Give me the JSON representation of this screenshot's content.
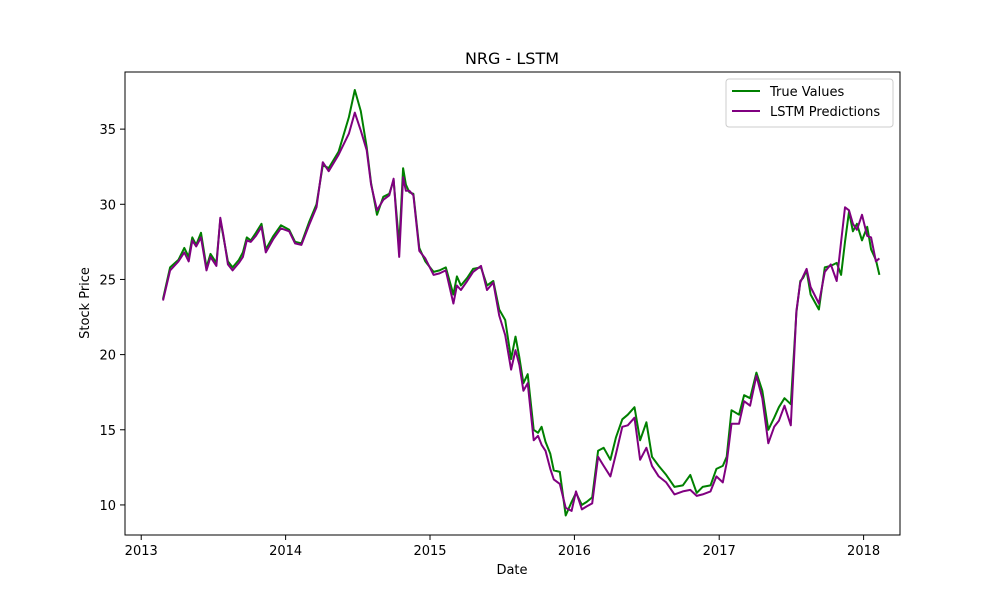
{
  "chart_data": {
    "type": "line",
    "title": "NRG - LSTM",
    "xlabel": "Date",
    "ylabel": "Stock Price",
    "xlim": [
      "2012-11-21",
      "2018-04-03"
    ],
    "ylim": [
      8.0,
      38.8
    ],
    "xticks": [
      {
        "value": "2013-01-01",
        "label": "2013"
      },
      {
        "value": "2014-01-01",
        "label": "2014"
      },
      {
        "value": "2015-01-01",
        "label": "2015"
      },
      {
        "value": "2016-01-01",
        "label": "2016"
      },
      {
        "value": "2017-01-01",
        "label": "2017"
      },
      {
        "value": "2018-01-01",
        "label": "2018"
      }
    ],
    "yticks": [
      10,
      15,
      20,
      25,
      30,
      35
    ],
    "grid": false,
    "legend": "top-right",
    "series": [
      {
        "name": "True Values",
        "color": "#008000",
        "x": [
          "2013-02-25",
          "2013-03-15",
          "2013-04-05",
          "2013-04-20",
          "2013-05-01",
          "2013-05-10",
          "2013-05-20",
          "2013-06-01",
          "2013-06-15",
          "2013-06-25",
          "2013-07-10",
          "2013-07-20",
          "2013-07-28",
          "2013-08-08",
          "2013-08-20",
          "2013-09-05",
          "2013-09-15",
          "2013-09-25",
          "2013-10-05",
          "2013-10-18",
          "2013-11-01",
          "2013-11-12",
          "2013-12-01",
          "2013-12-20",
          "2014-01-10",
          "2014-01-25",
          "2014-02-10",
          "2014-03-01",
          "2014-03-20",
          "2014-04-05",
          "2014-04-20",
          "2014-05-15",
          "2014-06-10",
          "2014-06-25",
          "2014-07-10",
          "2014-07-25",
          "2014-08-05",
          "2014-08-20",
          "2014-09-05",
          "2014-09-20",
          "2014-10-01",
          "2014-10-15",
          "2014-10-25",
          "2014-11-01",
          "2014-11-10",
          "2014-11-20",
          "2014-12-05",
          "2014-12-20",
          "2015-01-10",
          "2015-01-25",
          "2015-02-10",
          "2015-03-01",
          "2015-03-10",
          "2015-03-20",
          "2015-04-05",
          "2015-04-20",
          "2015-05-10",
          "2015-05-25",
          "2015-06-10",
          "2015-06-25",
          "2015-07-10",
          "2015-07-25",
          "2015-08-05",
          "2015-08-15",
          "2015-08-25",
          "2015-09-05",
          "2015-09-20",
          "2015-10-01",
          "2015-10-10",
          "2015-10-20",
          "2015-11-01",
          "2015-11-10",
          "2015-11-25",
          "2015-12-10",
          "2015-12-25",
          "2016-01-05",
          "2016-01-20",
          "2016-02-01",
          "2016-02-15",
          "2016-03-01",
          "2016-03-15",
          "2016-04-01",
          "2016-04-15",
          "2016-05-01",
          "2016-05-15",
          "2016-06-01",
          "2016-06-15",
          "2016-07-01",
          "2016-07-15",
          "2016-08-01",
          "2016-08-20",
          "2016-09-10",
          "2016-10-01",
          "2016-10-20",
          "2016-11-05",
          "2016-11-20",
          "2016-12-10",
          "2016-12-25",
          "2017-01-10",
          "2017-01-20",
          "2017-02-01",
          "2017-02-20",
          "2017-03-05",
          "2017-03-20",
          "2017-04-05",
          "2017-04-20",
          "2017-05-05",
          "2017-05-20",
          "2017-06-01",
          "2017-06-15",
          "2017-07-01",
          "2017-07-15",
          "2017-07-25",
          "2017-08-01",
          "2017-08-10",
          "2017-08-20",
          "2017-09-10",
          "2017-09-25",
          "2017-10-10",
          "2017-10-25",
          "2017-11-05",
          "2017-11-15",
          "2017-11-25",
          "2017-12-05",
          "2017-12-15",
          "2017-12-28",
          "2018-01-10",
          "2018-01-20",
          "2018-02-01",
          "2018-02-10"
        ],
        "values": [
          23.7,
          25.8,
          26.3,
          27.1,
          26.5,
          27.8,
          27.3,
          28.1,
          25.8,
          26.7,
          26.1,
          29.0,
          27.8,
          26.2,
          25.8,
          26.3,
          26.8,
          27.8,
          27.6,
          28.1,
          28.7,
          27.0,
          27.9,
          28.6,
          28.3,
          27.5,
          27.4,
          28.8,
          30.0,
          32.6,
          32.4,
          33.5,
          35.8,
          37.6,
          36.2,
          33.8,
          31.4,
          29.3,
          30.5,
          30.7,
          31.6,
          27.3,
          32.4,
          31.3,
          30.8,
          30.7,
          27.1,
          26.2,
          25.5,
          25.6,
          25.8,
          24.0,
          25.2,
          24.6,
          25.1,
          25.7,
          25.8,
          24.6,
          24.9,
          23.0,
          22.3,
          19.7,
          21.2,
          19.8,
          18.1,
          18.7,
          15.0,
          14.8,
          15.2,
          14.2,
          13.4,
          12.3,
          12.2,
          9.3,
          10.2,
          10.8,
          10.0,
          10.2,
          10.5,
          13.6,
          13.8,
          13.0,
          14.5,
          15.7,
          16.0,
          16.5,
          14.3,
          15.5,
          13.2,
          12.6,
          12.0,
          11.2,
          11.3,
          12.0,
          10.8,
          11.2,
          11.3,
          12.4,
          12.6,
          13.2,
          16.3,
          16.0,
          17.3,
          17.1,
          18.8,
          17.6,
          15.0,
          15.8,
          16.5,
          17.1,
          16.7,
          22.8,
          24.9,
          25.1,
          25.6,
          24.0,
          23.0,
          25.8,
          25.9,
          26.1,
          25.3,
          27.5,
          29.5,
          28.2,
          28.7,
          27.6,
          28.5,
          27.0,
          26.3,
          25.3
        ]
      },
      {
        "name": "LSTM Predictions",
        "color": "#800080",
        "x": [
          "2013-02-25",
          "2013-03-15",
          "2013-04-05",
          "2013-04-20",
          "2013-05-01",
          "2013-05-10",
          "2013-05-20",
          "2013-06-01",
          "2013-06-15",
          "2013-06-25",
          "2013-07-10",
          "2013-07-20",
          "2013-07-28",
          "2013-08-08",
          "2013-08-20",
          "2013-09-05",
          "2013-09-15",
          "2013-09-25",
          "2013-10-05",
          "2013-10-18",
          "2013-11-01",
          "2013-11-12",
          "2013-12-01",
          "2013-12-20",
          "2014-01-10",
          "2014-01-25",
          "2014-02-10",
          "2014-03-01",
          "2014-03-20",
          "2014-04-05",
          "2014-04-20",
          "2014-05-15",
          "2014-06-10",
          "2014-06-25",
          "2014-07-10",
          "2014-07-25",
          "2014-08-05",
          "2014-08-20",
          "2014-09-05",
          "2014-09-20",
          "2014-10-01",
          "2014-10-15",
          "2014-10-25",
          "2014-11-01",
          "2014-11-10",
          "2014-11-20",
          "2014-12-05",
          "2014-12-20",
          "2015-01-10",
          "2015-01-25",
          "2015-02-10",
          "2015-03-01",
          "2015-03-10",
          "2015-03-20",
          "2015-04-05",
          "2015-04-20",
          "2015-05-10",
          "2015-05-25",
          "2015-06-10",
          "2015-06-25",
          "2015-07-10",
          "2015-07-25",
          "2015-08-05",
          "2015-08-15",
          "2015-08-25",
          "2015-09-05",
          "2015-09-20",
          "2015-10-01",
          "2015-10-10",
          "2015-10-20",
          "2015-11-01",
          "2015-11-10",
          "2015-11-25",
          "2015-12-10",
          "2015-12-25",
          "2016-01-05",
          "2016-01-20",
          "2016-02-01",
          "2016-02-15",
          "2016-03-01",
          "2016-03-15",
          "2016-04-01",
          "2016-04-15",
          "2016-05-01",
          "2016-05-15",
          "2016-06-01",
          "2016-06-15",
          "2016-07-01",
          "2016-07-15",
          "2016-08-01",
          "2016-08-20",
          "2016-09-10",
          "2016-10-01",
          "2016-10-20",
          "2016-11-05",
          "2016-11-20",
          "2016-12-10",
          "2016-12-25",
          "2017-01-10",
          "2017-01-20",
          "2017-02-01",
          "2017-02-20",
          "2017-03-05",
          "2017-03-20",
          "2017-04-05",
          "2017-04-20",
          "2017-05-05",
          "2017-05-20",
          "2017-06-01",
          "2017-06-15",
          "2017-07-01",
          "2017-07-15",
          "2017-07-25",
          "2017-08-01",
          "2017-08-10",
          "2017-08-20",
          "2017-09-10",
          "2017-09-25",
          "2017-10-10",
          "2017-10-25",
          "2017-11-05",
          "2017-11-15",
          "2017-11-25",
          "2017-12-05",
          "2017-12-15",
          "2017-12-28",
          "2018-01-10",
          "2018-01-20",
          "2018-02-01",
          "2018-02-10"
        ],
        "values": [
          23.6,
          25.6,
          26.2,
          26.8,
          26.2,
          27.6,
          27.2,
          27.8,
          25.6,
          26.5,
          25.9,
          29.1,
          27.9,
          26.0,
          25.6,
          26.1,
          26.5,
          27.6,
          27.5,
          27.9,
          28.5,
          26.8,
          27.7,
          28.4,
          28.2,
          27.4,
          27.3,
          28.6,
          29.8,
          32.8,
          32.2,
          33.3,
          34.7,
          36.1,
          34.9,
          33.6,
          31.3,
          29.6,
          30.3,
          30.6,
          31.7,
          26.5,
          31.8,
          30.9,
          30.9,
          30.6,
          26.9,
          26.4,
          25.3,
          25.4,
          25.6,
          23.4,
          24.6,
          24.3,
          24.9,
          25.5,
          25.9,
          24.3,
          24.8,
          22.6,
          21.3,
          19.0,
          20.3,
          19.3,
          17.6,
          18.1,
          14.3,
          14.6,
          14.0,
          13.6,
          12.4,
          11.7,
          11.4,
          9.8,
          9.6,
          10.9,
          9.7,
          9.9,
          10.1,
          13.2,
          12.6,
          11.9,
          13.4,
          15.2,
          15.3,
          15.8,
          13.0,
          13.8,
          12.6,
          11.9,
          11.5,
          10.7,
          10.9,
          11.0,
          10.6,
          10.7,
          10.9,
          11.9,
          11.5,
          12.8,
          15.4,
          15.4,
          16.9,
          16.6,
          18.6,
          17.1,
          14.1,
          15.2,
          15.6,
          16.6,
          15.3,
          22.9,
          24.8,
          25.2,
          25.7,
          24.5,
          23.4,
          25.5,
          26.0,
          24.9,
          27.5,
          29.8,
          29.6,
          28.7,
          28.3,
          29.3,
          27.9,
          27.8,
          26.2,
          26.4
        ]
      }
    ]
  }
}
